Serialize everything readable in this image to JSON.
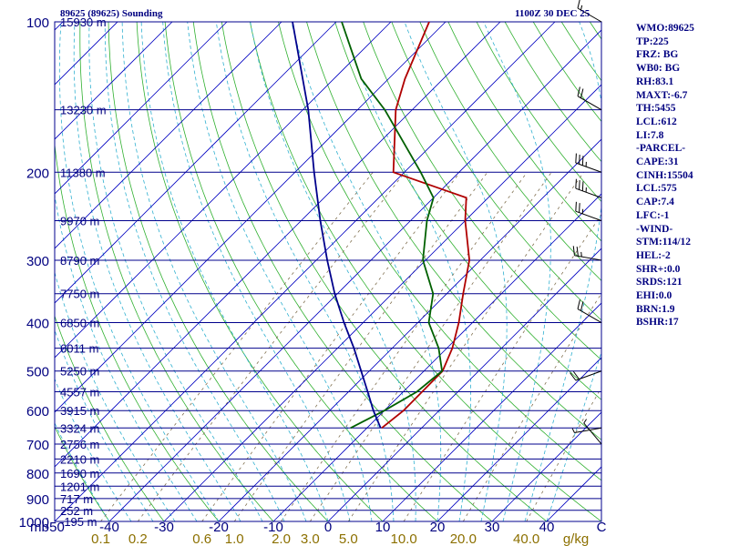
{
  "header": {
    "station": "89625 (89625) Sounding",
    "time": "1100Z 30 DEC 25"
  },
  "stats": [
    "WMO:89625",
    "TP:225",
    "FRZ: BG",
    "WB0: BG",
    "RH:83.1",
    "MAXT:-6.7",
    "TH:5455",
    "LCL:612",
    "LI:7.8",
    "-PARCEL-",
    "CAPE:31",
    "CINH:15504",
    "LCL:575",
    "CAP:7.4",
    "LFC:-1",
    "-WIND-",
    "STM:114/12",
    "HEL:-2",
    "SHR+:0.0",
    "SRDS:121",
    "EHI:0.0",
    "BRN:1.9",
    "BSHR:17"
  ],
  "colors": {
    "temperature": "#b00000",
    "dewpoint": "#006000",
    "parcel": "#00008c",
    "isobar": "#00008c",
    "isotherm": "#0000c0",
    "dry_adiabat": "#30b030",
    "moist_adiabat": "#30b0d0",
    "mixing_ratio": "#807050",
    "axis_label": "#000080",
    "mixing_label": "#8c7000"
  },
  "chart_data": {
    "type": "line",
    "diagram": "skew-T log-P",
    "y_axis": {
      "scale": "log",
      "ylim": [
        1000,
        100
      ],
      "unit_label": "mb",
      "ticks": [
        100,
        200,
        300,
        400,
        500,
        600,
        700,
        800,
        900,
        1000
      ]
    },
    "x_axis": {
      "xlim": [
        -50,
        50
      ],
      "ticks": [
        "-50",
        "-40",
        "-30",
        "-20",
        "-10",
        "0",
        "10",
        "20",
        "30",
        "40"
      ],
      "end_label": "C"
    },
    "height_labels": [
      {
        "p": 100,
        "label": "15930 m"
      },
      {
        "p": 150,
        "label": "13230 m"
      },
      {
        "p": 200,
        "label": "11380 m"
      },
      {
        "p": 250,
        "label": "9970 m"
      },
      {
        "p": 300,
        "label": "8790 m"
      },
      {
        "p": 350,
        "label": "7750 m"
      },
      {
        "p": 400,
        "label": "6850 m"
      },
      {
        "p": 450,
        "label": "6011 m"
      },
      {
        "p": 500,
        "label": "5250 m"
      },
      {
        "p": 550,
        "label": "4557 m"
      },
      {
        "p": 600,
        "label": "3915 m"
      },
      {
        "p": 650,
        "label": "3324 m"
      },
      {
        "p": 700,
        "label": "2756 m"
      },
      {
        "p": 750,
        "label": "2210 m"
      },
      {
        "p": 800,
        "label": "1690 m"
      },
      {
        "p": 850,
        "label": "1201 m"
      },
      {
        "p": 900,
        "label": "717 m"
      },
      {
        "p": 950,
        "label": "252 m"
      },
      {
        "p": 1000,
        "label": "-195 m"
      }
    ],
    "mixing_ratio_labels": [
      {
        "w": 0.1,
        "label": "0.1"
      },
      {
        "w": 0.2,
        "label": "0.2"
      },
      {
        "w": 0.6,
        "label": "0.6"
      },
      {
        "w": 1.0,
        "label": "1.0"
      },
      {
        "w": 2.0,
        "label": "2.0"
      },
      {
        "w": 3.0,
        "label": "3.0"
      },
      {
        "w": 5.0,
        "label": "5.0"
      },
      {
        "w": 10.0,
        "label": "10.0"
      },
      {
        "w": 20.0,
        "label": "20.0"
      },
      {
        "w": 40.0,
        "label": "40.0"
      }
    ],
    "mixing_ratio_unit": "g/kg",
    "series": [
      {
        "name": "temperature",
        "points": [
          [
            650,
            -7.3
          ],
          [
            600,
            -6.5
          ],
          [
            500,
            -6.6
          ],
          [
            450,
            -9
          ],
          [
            400,
            -12.5
          ],
          [
            350,
            -17
          ],
          [
            300,
            -22
          ],
          [
            250,
            -30
          ],
          [
            225,
            -34
          ],
          [
            200,
            -52
          ],
          [
            150,
            -63
          ],
          [
            130,
            -67
          ],
          [
            100,
            -73
          ]
        ]
      },
      {
        "name": "dewpoint",
        "points": [
          [
            650,
            -13
          ],
          [
            600,
            -10
          ],
          [
            550,
            -7.5
          ],
          [
            500,
            -6.7
          ],
          [
            450,
            -11.5
          ],
          [
            400,
            -18
          ],
          [
            350,
            -22.5
          ],
          [
            300,
            -30.5
          ],
          [
            250,
            -37
          ],
          [
            225,
            -40
          ],
          [
            200,
            -47
          ],
          [
            150,
            -65
          ],
          [
            130,
            -75
          ],
          [
            100,
            -89
          ]
        ]
      },
      {
        "name": "parcel",
        "points": [
          [
            650,
            -7.5
          ],
          [
            600,
            -12
          ],
          [
            550,
            -16.5
          ],
          [
            500,
            -21.5
          ],
          [
            450,
            -27
          ],
          [
            400,
            -33.5
          ],
          [
            350,
            -40.5
          ],
          [
            300,
            -48
          ],
          [
            250,
            -56.5
          ],
          [
            200,
            -66.5
          ],
          [
            150,
            -79
          ],
          [
            100,
            -98
          ]
        ]
      }
    ],
    "wind_barbs": [
      {
        "p": 100,
        "dir": 300,
        "kt": 15
      },
      {
        "p": 150,
        "dir": 300,
        "kt": 20
      },
      {
        "p": 200,
        "dir": 290,
        "kt": 35
      },
      {
        "p": 225,
        "dir": 290,
        "kt": 35
      },
      {
        "p": 250,
        "dir": 290,
        "kt": 25
      },
      {
        "p": 300,
        "dir": 280,
        "kt": 25
      },
      {
        "p": 400,
        "dir": 300,
        "kt": 20
      },
      {
        "p": 500,
        "dir": 250,
        "kt": 20
      },
      {
        "p": 650,
        "dir": 260,
        "kt": 5
      },
      {
        "p": 700,
        "dir": 320,
        "kt": 5
      }
    ]
  }
}
